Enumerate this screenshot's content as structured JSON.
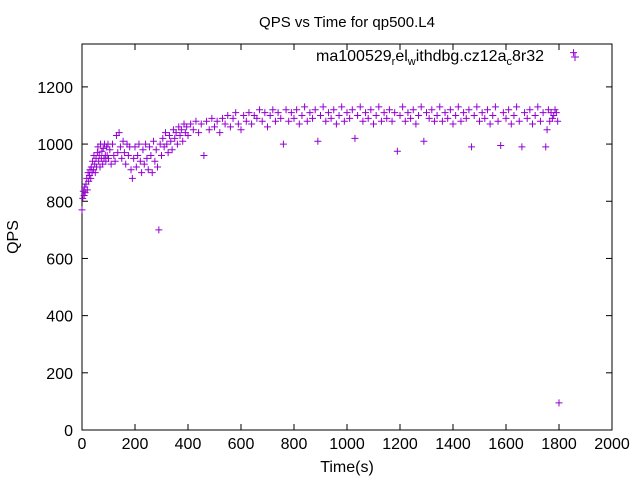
{
  "chart_data": {
    "type": "scatter",
    "title": "QPS vs Time for qp500.L4",
    "xlabel": "Time(s)",
    "ylabel": "QPS",
    "xlim": [
      0,
      2000
    ],
    "ylim": [
      0,
      1350
    ],
    "x_ticks": [
      0,
      200,
      400,
      600,
      800,
      1000,
      1200,
      1400,
      1600,
      1800,
      2000
    ],
    "y_ticks": [
      0,
      200,
      400,
      600,
      800,
      1000,
      1200
    ],
    "grid": false,
    "legend_position": "top-right",
    "marker": "plus",
    "color": "#9400d3",
    "legend": {
      "main": "ma100529",
      "sub1": "r",
      "mid1": "el",
      "sub2": "w",
      "mid2": "ithdbg.cz12a",
      "sub3": "c",
      "tail": "8r32"
    },
    "series": [
      {
        "points": [
          [
            0,
            770
          ],
          [
            3,
            810
          ],
          [
            5,
            835
          ],
          [
            8,
            820
          ],
          [
            10,
            850
          ],
          [
            12,
            830
          ],
          [
            15,
            860
          ],
          [
            18,
            880
          ],
          [
            20,
            840
          ],
          [
            23,
            900
          ],
          [
            25,
            870
          ],
          [
            28,
            890
          ],
          [
            30,
            910
          ],
          [
            33,
            880
          ],
          [
            35,
            920
          ],
          [
            38,
            900
          ],
          [
            40,
            940
          ],
          [
            43,
            910
          ],
          [
            45,
            960
          ],
          [
            48,
            930
          ],
          [
            50,
            900
          ],
          [
            53,
            950
          ],
          [
            55,
            920
          ],
          [
            58,
            970
          ],
          [
            60,
            990
          ],
          [
            63,
            940
          ],
          [
            65,
            960
          ],
          [
            68,
            920
          ],
          [
            70,
            1000
          ],
          [
            73,
            950
          ],
          [
            75,
            975
          ],
          [
            78,
            930
          ],
          [
            80,
            985
          ],
          [
            83,
            950
          ],
          [
            85,
            1000
          ],
          [
            88,
            960
          ],
          [
            90,
            940
          ],
          [
            93,
            990
          ],
          [
            95,
            960
          ],
          [
            98,
            1000
          ],
          [
            100,
            950
          ],
          [
            105,
            980
          ],
          [
            110,
            930
          ],
          [
            115,
            1000
          ],
          [
            120,
            960
          ],
          [
            125,
            940
          ],
          [
            130,
            1030
          ],
          [
            135,
            970
          ],
          [
            140,
            1040
          ],
          [
            145,
            990
          ],
          [
            150,
            950
          ],
          [
            155,
            1010
          ],
          [
            160,
            970
          ],
          [
            165,
            930
          ],
          [
            170,
            1000
          ],
          [
            175,
            960
          ],
          [
            180,
            990
          ],
          [
            185,
            910
          ],
          [
            190,
            880
          ],
          [
            195,
            950
          ],
          [
            200,
            990
          ],
          [
            205,
            920
          ],
          [
            210,
            960
          ],
          [
            215,
            1000
          ],
          [
            220,
            940
          ],
          [
            225,
            900
          ],
          [
            230,
            980
          ],
          [
            235,
            930
          ],
          [
            240,
            1000
          ],
          [
            245,
            950
          ],
          [
            250,
            910
          ],
          [
            255,
            990
          ],
          [
            260,
            960
          ],
          [
            265,
            900
          ],
          [
            270,
            1010
          ],
          [
            275,
            940
          ],
          [
            280,
            980
          ],
          [
            285,
            920
          ],
          [
            290,
            700
          ],
          [
            295,
            1000
          ],
          [
            300,
            960
          ],
          [
            305,
            1020
          ],
          [
            310,
            990
          ],
          [
            315,
            1040
          ],
          [
            320,
            1000
          ],
          [
            325,
            970
          ],
          [
            330,
            1030
          ],
          [
            335,
            1010
          ],
          [
            340,
            980
          ],
          [
            345,
            1050
          ],
          [
            350,
            1020
          ],
          [
            355,
            1040
          ],
          [
            360,
            1000
          ],
          [
            365,
            1060
          ],
          [
            370,
            1030
          ],
          [
            375,
            1050
          ],
          [
            380,
            1010
          ],
          [
            385,
            1070
          ],
          [
            390,
            1040
          ],
          [
            395,
            1060
          ],
          [
            400,
            1030
          ],
          [
            410,
            1070
          ],
          [
            420,
            1050
          ],
          [
            430,
            1080
          ],
          [
            440,
            1040
          ],
          [
            450,
            1070
          ],
          [
            460,
            960
          ],
          [
            470,
            1080
          ],
          [
            480,
            1050
          ],
          [
            490,
            1090
          ],
          [
            500,
            1060
          ],
          [
            510,
            1080
          ],
          [
            520,
            1040
          ],
          [
            530,
            1090
          ],
          [
            540,
            1070
          ],
          [
            550,
            1100
          ],
          [
            560,
            1060
          ],
          [
            570,
            1090
          ],
          [
            580,
            1110
          ],
          [
            590,
            1070
          ],
          [
            600,
            1050
          ],
          [
            610,
            1100
          ],
          [
            620,
            1080
          ],
          [
            630,
            1110
          ],
          [
            640,
            1070
          ],
          [
            650,
            1100
          ],
          [
            660,
            1090
          ],
          [
            670,
            1120
          ],
          [
            680,
            1080
          ],
          [
            690,
            1110
          ],
          [
            700,
            1060
          ],
          [
            710,
            1100
          ],
          [
            720,
            1120
          ],
          [
            730,
            1080
          ],
          [
            740,
            1110
          ],
          [
            750,
            1090
          ],
          [
            760,
            1000
          ],
          [
            770,
            1120
          ],
          [
            780,
            1080
          ],
          [
            790,
            1110
          ],
          [
            800,
            1090
          ],
          [
            810,
            1120
          ],
          [
            820,
            1070
          ],
          [
            830,
            1100
          ],
          [
            840,
            1130
          ],
          [
            850,
            1080
          ],
          [
            860,
            1110
          ],
          [
            870,
            1090
          ],
          [
            880,
            1120
          ],
          [
            890,
            1010
          ],
          [
            900,
            1100
          ],
          [
            910,
            1130
          ],
          [
            920,
            1080
          ],
          [
            930,
            1110
          ],
          [
            940,
            1090
          ],
          [
            950,
            1120
          ],
          [
            960,
            1070
          ],
          [
            970,
            1100
          ],
          [
            980,
            1130
          ],
          [
            990,
            1080
          ],
          [
            1000,
            1110
          ],
          [
            1010,
            1090
          ],
          [
            1020,
            1120
          ],
          [
            1030,
            1020
          ],
          [
            1040,
            1100
          ],
          [
            1050,
            1130
          ],
          [
            1060,
            1080
          ],
          [
            1070,
            1110
          ],
          [
            1080,
            1090
          ],
          [
            1090,
            1120
          ],
          [
            1100,
            1070
          ],
          [
            1110,
            1100
          ],
          [
            1120,
            1130
          ],
          [
            1130,
            1080
          ],
          [
            1140,
            1110
          ],
          [
            1150,
            1090
          ],
          [
            1160,
            1120
          ],
          [
            1170,
            1080
          ],
          [
            1180,
            1110
          ],
          [
            1190,
            975
          ],
          [
            1200,
            1100
          ],
          [
            1210,
            1130
          ],
          [
            1220,
            1080
          ],
          [
            1230,
            1110
          ],
          [
            1240,
            1090
          ],
          [
            1250,
            1120
          ],
          [
            1260,
            1070
          ],
          [
            1270,
            1100
          ],
          [
            1280,
            1130
          ],
          [
            1290,
            1010
          ],
          [
            1300,
            1110
          ],
          [
            1310,
            1090
          ],
          [
            1320,
            1120
          ],
          [
            1330,
            1080
          ],
          [
            1340,
            1100
          ],
          [
            1350,
            1130
          ],
          [
            1360,
            1080
          ],
          [
            1370,
            1110
          ],
          [
            1380,
            1090
          ],
          [
            1390,
            1120
          ],
          [
            1400,
            1070
          ],
          [
            1410,
            1100
          ],
          [
            1420,
            1130
          ],
          [
            1430,
            1080
          ],
          [
            1440,
            1110
          ],
          [
            1450,
            1090
          ],
          [
            1460,
            1120
          ],
          [
            1470,
            990
          ],
          [
            1480,
            1100
          ],
          [
            1490,
            1130
          ],
          [
            1500,
            1080
          ],
          [
            1510,
            1110
          ],
          [
            1520,
            1090
          ],
          [
            1530,
            1120
          ],
          [
            1540,
            1070
          ],
          [
            1550,
            1100
          ],
          [
            1560,
            1130
          ],
          [
            1570,
            1080
          ],
          [
            1580,
            995
          ],
          [
            1590,
            1110
          ],
          [
            1600,
            1090
          ],
          [
            1610,
            1120
          ],
          [
            1620,
            1070
          ],
          [
            1630,
            1100
          ],
          [
            1640,
            1130
          ],
          [
            1650,
            1080
          ],
          [
            1660,
            990
          ],
          [
            1670,
            1110
          ],
          [
            1680,
            1090
          ],
          [
            1690,
            1120
          ],
          [
            1700,
            1070
          ],
          [
            1710,
            1100
          ],
          [
            1720,
            1130
          ],
          [
            1730,
            1080
          ],
          [
            1740,
            1110
          ],
          [
            1750,
            990
          ],
          [
            1755,
            1050
          ],
          [
            1760,
            1120
          ],
          [
            1765,
            1080
          ],
          [
            1770,
            1110
          ],
          [
            1775,
            1090
          ],
          [
            1780,
            1100
          ],
          [
            1785,
            1120
          ],
          [
            1790,
            1110
          ],
          [
            1795,
            1080
          ],
          [
            1800,
            95
          ],
          [
            1855,
            1320
          ]
        ]
      }
    ]
  }
}
